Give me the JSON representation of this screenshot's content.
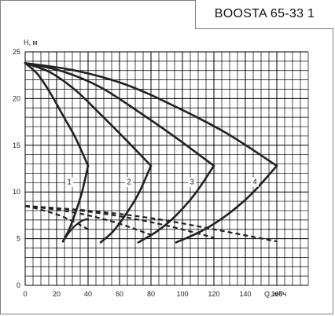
{
  "title": "BOOSTA 65-33 1",
  "chart_data": {
    "type": "line",
    "title": "BOOSTA 65-33 1",
    "xlabel": "Q, м³/ч",
    "ylabel": "H, м",
    "xlim": [
      0,
      180
    ],
    "ylim": [
      0,
      25
    ],
    "x_major_ticks": [
      0,
      20,
      40,
      60,
      80,
      100,
      120,
      140,
      160
    ],
    "y_major_ticks": [
      0,
      5,
      10,
      15,
      20,
      25
    ],
    "x_grid_step": 5,
    "y_grid_step": 1,
    "grid": true,
    "line_color": "#222222",
    "grid_color": "#000000",
    "series": [
      {
        "name": "1",
        "label_at": [
          28,
          10.8
        ],
        "head_curve": [
          [
            0,
            23.8
          ],
          [
            8,
            22.6
          ],
          [
            16,
            20.6
          ],
          [
            24,
            18.2
          ],
          [
            32,
            15.8
          ],
          [
            40,
            12.8
          ]
        ],
        "low_branch": [
          [
            40,
            12.8
          ],
          [
            36,
            9.9
          ],
          [
            32,
            7.8
          ],
          [
            28,
            6.0
          ],
          [
            24,
            4.7
          ]
        ],
        "dashed": [
          [
            0,
            8.5
          ],
          [
            10,
            8.1
          ],
          [
            20,
            7.6
          ],
          [
            30,
            6.9
          ],
          [
            40,
            6.0
          ]
        ],
        "dashed_end": [
          [
            24,
            4.7
          ],
          [
            30,
            6.1
          ],
          [
            36,
            6.9
          ],
          [
            40,
            7.1
          ]
        ]
      },
      {
        "name": "2",
        "label_at": [
          66,
          10.8
        ],
        "head_curve": [
          [
            0,
            23.8
          ],
          [
            16,
            22.8
          ],
          [
            32,
            20.9
          ],
          [
            48,
            18.3
          ],
          [
            64,
            15.6
          ],
          [
            80,
            12.8
          ]
        ],
        "low_branch": [
          [
            80,
            12.8
          ],
          [
            72,
            9.8
          ],
          [
            64,
            7.6
          ],
          [
            56,
            5.8
          ],
          [
            48,
            4.6
          ]
        ],
        "dashed": [
          [
            0,
            8.5
          ],
          [
            20,
            8.1
          ],
          [
            40,
            7.5
          ],
          [
            60,
            6.6
          ],
          [
            80,
            5.4
          ]
        ]
      },
      {
        "name": "3",
        "label_at": [
          106,
          10.8
        ],
        "head_curve": [
          [
            0,
            23.8
          ],
          [
            24,
            22.9
          ],
          [
            48,
            21.2
          ],
          [
            72,
            18.6
          ],
          [
            96,
            15.8
          ],
          [
            120,
            12.8
          ]
        ],
        "low_branch": [
          [
            120,
            12.8
          ],
          [
            108,
            9.8
          ],
          [
            96,
            7.5
          ],
          [
            84,
            5.8
          ],
          [
            72,
            4.6
          ]
        ],
        "dashed": [
          [
            0,
            8.5
          ],
          [
            30,
            8.1
          ],
          [
            60,
            7.4
          ],
          [
            90,
            6.4
          ],
          [
            120,
            5.1
          ]
        ]
      },
      {
        "name": "4",
        "label_at": [
          146,
          10.8
        ],
        "head_curve": [
          [
            0,
            23.8
          ],
          [
            32,
            23.0
          ],
          [
            64,
            21.5
          ],
          [
            96,
            19.1
          ],
          [
            128,
            16.3
          ],
          [
            160,
            12.8
          ]
        ],
        "low_branch": [
          [
            160,
            12.8
          ],
          [
            144,
            9.8
          ],
          [
            128,
            7.5
          ],
          [
            112,
            5.8
          ],
          [
            96,
            4.6
          ]
        ],
        "dashed": [
          [
            0,
            8.5
          ],
          [
            40,
            8.0
          ],
          [
            80,
            7.2
          ],
          [
            120,
            6.0
          ],
          [
            160,
            4.7
          ]
        ]
      }
    ]
  }
}
